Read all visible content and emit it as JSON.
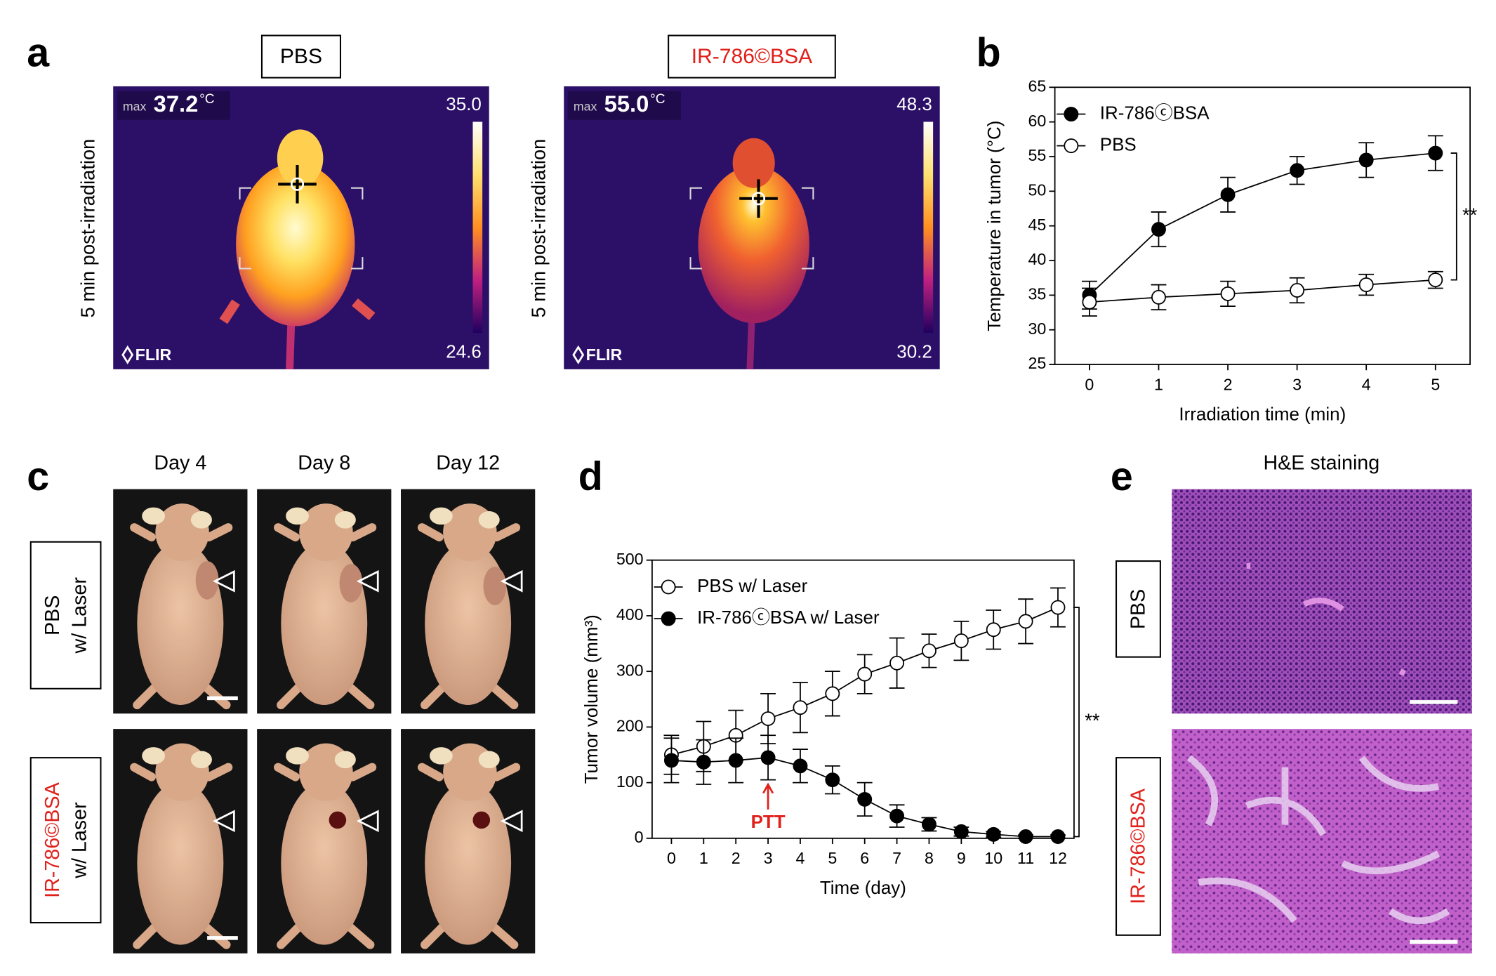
{
  "panel_labels": [
    "a",
    "b",
    "c",
    "d",
    "e"
  ],
  "thermal": {
    "ylabel": "5 min post-irradiation",
    "max_label": "max",
    "unit": "°C",
    "brand": "FLIR",
    "images": [
      {
        "title": "PBS",
        "color": "#000000",
        "max": "37.2",
        "scale_max": "35.0",
        "scale_min": "24.6"
      },
      {
        "title": "IR-786©BSA",
        "color": "#e0201b",
        "max": "55.0",
        "scale_max": "48.3",
        "scale_min": "30.2"
      }
    ]
  },
  "mice": {
    "days": [
      "Day 4",
      "Day 8",
      "Day 12"
    ],
    "rows": [
      {
        "label": "PBS",
        "sublabel": "w/ Laser",
        "color": "#000000"
      },
      {
        "label": "IR-786©BSA",
        "sublabel": "w/ Laser",
        "color": "#e0201b"
      }
    ]
  },
  "histology": {
    "title": "H&E staining",
    "rows": [
      {
        "label": "PBS",
        "color": "#000000"
      },
      {
        "label": "IR-786©BSA",
        "color": "#e0201b"
      }
    ]
  },
  "chart_data": [
    {
      "type": "line",
      "xlabel": "Irradiation time (min)",
      "ylabel": "Temperature in tumor (°C)",
      "x": [
        0,
        1,
        2,
        3,
        4,
        5
      ],
      "xlim": [
        -0.5,
        5.5
      ],
      "xticks": [
        0,
        1,
        2,
        3,
        4,
        5
      ],
      "ylim": [
        25,
        65
      ],
      "yticks": [
        25,
        30,
        35,
        40,
        45,
        50,
        55,
        60,
        65
      ],
      "legend": "upper left",
      "series": [
        {
          "name": "IR-786ⓒBSA",
          "color": "#000000",
          "marker_face": "#000000",
          "values": [
            35,
            44.5,
            49.5,
            53,
            54.5,
            55.5
          ],
          "errors": [
            2,
            2.5,
            2.5,
            2,
            2.5,
            2.5
          ]
        },
        {
          "name": "PBS",
          "color": "#000000",
          "marker_face": "#ffffff",
          "values": [
            34,
            34.7,
            35.2,
            35.7,
            36.5,
            37.2
          ],
          "errors": [
            2,
            1.8,
            1.8,
            1.8,
            1.5,
            1.2
          ]
        }
      ],
      "significance": "**"
    },
    {
      "type": "line",
      "xlabel": "Time (day)",
      "ylabel": "Tumor volume (mm³)",
      "x": [
        0,
        1,
        2,
        3,
        4,
        5,
        6,
        7,
        8,
        9,
        10,
        11,
        12
      ],
      "xlim": [
        -0.6,
        12.5
      ],
      "xticks": [
        0,
        1,
        2,
        3,
        4,
        5,
        6,
        7,
        8,
        9,
        10,
        11,
        12
      ],
      "ylim": [
        0,
        500
      ],
      "yticks": [
        0,
        100,
        200,
        300,
        400,
        500
      ],
      "legend": "upper left",
      "series": [
        {
          "name": "PBS w/ Laser",
          "color": "#000000",
          "marker_face": "#ffffff",
          "values": [
            150,
            165,
            185,
            215,
            235,
            260,
            295,
            315,
            337,
            355,
            375,
            390,
            415
          ],
          "errors": [
            35,
            45,
            45,
            45,
            45,
            40,
            35,
            45,
            30,
            35,
            35,
            40,
            35
          ]
        },
        {
          "name": "IR-786ⓒBSA w/ Laser",
          "color": "#000000",
          "marker_face": "#000000",
          "values": [
            140,
            137,
            140,
            145,
            130,
            105,
            70,
            40,
            25,
            12,
            7,
            3,
            3
          ],
          "errors": [
            40,
            40,
            40,
            40,
            30,
            25,
            30,
            20,
            12,
            8,
            5,
            3,
            3
          ]
        }
      ],
      "arrow_label": {
        "text": "PTT",
        "x": 3,
        "color": "#e0201b"
      },
      "significance": "**"
    }
  ]
}
